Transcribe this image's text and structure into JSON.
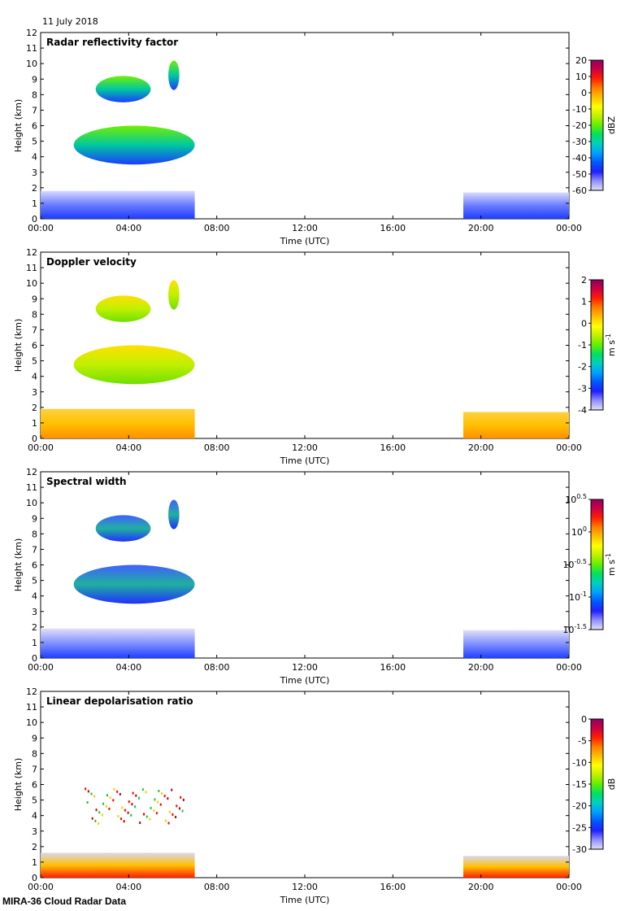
{
  "date_label": "11 July 2018",
  "footer": "MIRA-36 Cloud Radar Data",
  "chart_data": [
    {
      "type": "heatmap",
      "title": "Radar reflectivity factor",
      "xlabel": "Time (UTC)",
      "ylabel": "Height (km)",
      "xticks": [
        "00:00",
        "04:00",
        "08:00",
        "12:00",
        "16:00",
        "20:00",
        "00:00"
      ],
      "xlim": [
        0,
        24
      ],
      "yticks": [
        0,
        1,
        2,
        3,
        4,
        5,
        6,
        7,
        8,
        9,
        10,
        11,
        12
      ],
      "ylim": [
        0,
        12
      ],
      "colorbar": {
        "unit": "dBZ",
        "ticks": [
          "20",
          "10",
          "0",
          "-10",
          "-20",
          "-30",
          "-40",
          "-50",
          "-60"
        ]
      },
      "features": [
        {
          "name": "boundary layer",
          "t_start": 0,
          "t_end": 7,
          "h_low": 0,
          "h_high": 1.8
        },
        {
          "name": "mid-level cloud",
          "t_start": 1.5,
          "t_end": 7,
          "h_low": 3.5,
          "h_high": 6.0
        },
        {
          "name": "upper cloud",
          "t_start": 2.5,
          "t_end": 5,
          "h_low": 7.5,
          "h_high": 9.2
        },
        {
          "name": "upper cloud",
          "t_start": 5.8,
          "t_end": 6.3,
          "h_low": 8.3,
          "h_high": 10.2
        },
        {
          "name": "boundary layer",
          "t_start": 19.2,
          "t_end": 24,
          "h_low": 0,
          "h_high": 1.7
        }
      ]
    },
    {
      "type": "heatmap",
      "title": "Doppler velocity",
      "xlabel": "Time (UTC)",
      "ylabel": "Height (km)",
      "xticks": [
        "00:00",
        "04:00",
        "08:00",
        "12:00",
        "16:00",
        "20:00",
        "00:00"
      ],
      "xlim": [
        0,
        24
      ],
      "yticks": [
        0,
        1,
        2,
        3,
        4,
        5,
        6,
        7,
        8,
        9,
        10,
        11,
        12
      ],
      "ylim": [
        0,
        12
      ],
      "colorbar": {
        "unit": "m s",
        "unit_sup": "-1",
        "ticks": [
          "2",
          "1",
          "0",
          "-1",
          "-2",
          "-3",
          "-4"
        ]
      },
      "features": [
        {
          "name": "boundary layer",
          "t_start": 0,
          "t_end": 7,
          "h_low": 0,
          "h_high": 1.9
        },
        {
          "name": "mid-level cloud",
          "t_start": 1.5,
          "t_end": 7,
          "h_low": 3.5,
          "h_high": 6.0
        },
        {
          "name": "upper cloud",
          "t_start": 2.5,
          "t_end": 5,
          "h_low": 7.5,
          "h_high": 9.2
        },
        {
          "name": "upper cloud",
          "t_start": 5.8,
          "t_end": 6.3,
          "h_low": 8.3,
          "h_high": 10.2
        },
        {
          "name": "boundary layer",
          "t_start": 19.2,
          "t_end": 24,
          "h_low": 0,
          "h_high": 1.7
        }
      ]
    },
    {
      "type": "heatmap",
      "title": "Spectral width",
      "xlabel": "Time (UTC)",
      "ylabel": "Height (km)",
      "xticks": [
        "00:00",
        "04:00",
        "08:00",
        "12:00",
        "16:00",
        "20:00",
        "00:00"
      ],
      "xlim": [
        0,
        24
      ],
      "yticks": [
        0,
        1,
        2,
        3,
        4,
        5,
        6,
        7,
        8,
        9,
        10,
        11,
        12
      ],
      "ylim": [
        0,
        12
      ],
      "colorbar": {
        "unit": "m s",
        "unit_sup": "-1",
        "ticks_base": "10",
        "ticks_exp": [
          "0.5",
          "0",
          "-0.5",
          "-1",
          "-1.5"
        ]
      },
      "features": [
        {
          "name": "boundary layer",
          "t_start": 0,
          "t_end": 7,
          "h_low": 0,
          "h_high": 1.9
        },
        {
          "name": "mid-level cloud",
          "t_start": 1.5,
          "t_end": 7,
          "h_low": 3.5,
          "h_high": 6.0
        },
        {
          "name": "upper cloud",
          "t_start": 2.5,
          "t_end": 5,
          "h_low": 7.5,
          "h_high": 9.2
        },
        {
          "name": "upper cloud",
          "t_start": 5.8,
          "t_end": 6.3,
          "h_low": 8.3,
          "h_high": 10.2
        },
        {
          "name": "boundary layer",
          "t_start": 19.2,
          "t_end": 24,
          "h_low": 0,
          "h_high": 1.8
        }
      ]
    },
    {
      "type": "heatmap",
      "title": "Linear depolarisation ratio",
      "xlabel": "Time (UTC)",
      "ylabel": "Height (km)",
      "xticks": [
        "00:00",
        "04:00",
        "08:00",
        "12:00",
        "16:00",
        "20:00",
        "00:00"
      ],
      "xlim": [
        0,
        24
      ],
      "yticks": [
        0,
        1,
        2,
        3,
        4,
        5,
        6,
        7,
        8,
        9,
        10,
        11,
        12
      ],
      "ylim": [
        0,
        12
      ],
      "colorbar": {
        "unit": "dB",
        "ticks": [
          "0",
          "-5",
          "-10",
          "-15",
          "-20",
          "-25",
          "-30"
        ]
      },
      "features": [
        {
          "name": "boundary layer",
          "t_start": 0,
          "t_end": 7,
          "h_low": 0,
          "h_high": 1.6
        },
        {
          "name": "sparse cloud",
          "t_start": 2,
          "t_end": 6.5,
          "h_low": 3.5,
          "h_high": 5.8
        },
        {
          "name": "boundary layer",
          "t_start": 19.2,
          "t_end": 24,
          "h_low": 0,
          "h_high": 1.4
        }
      ]
    }
  ]
}
